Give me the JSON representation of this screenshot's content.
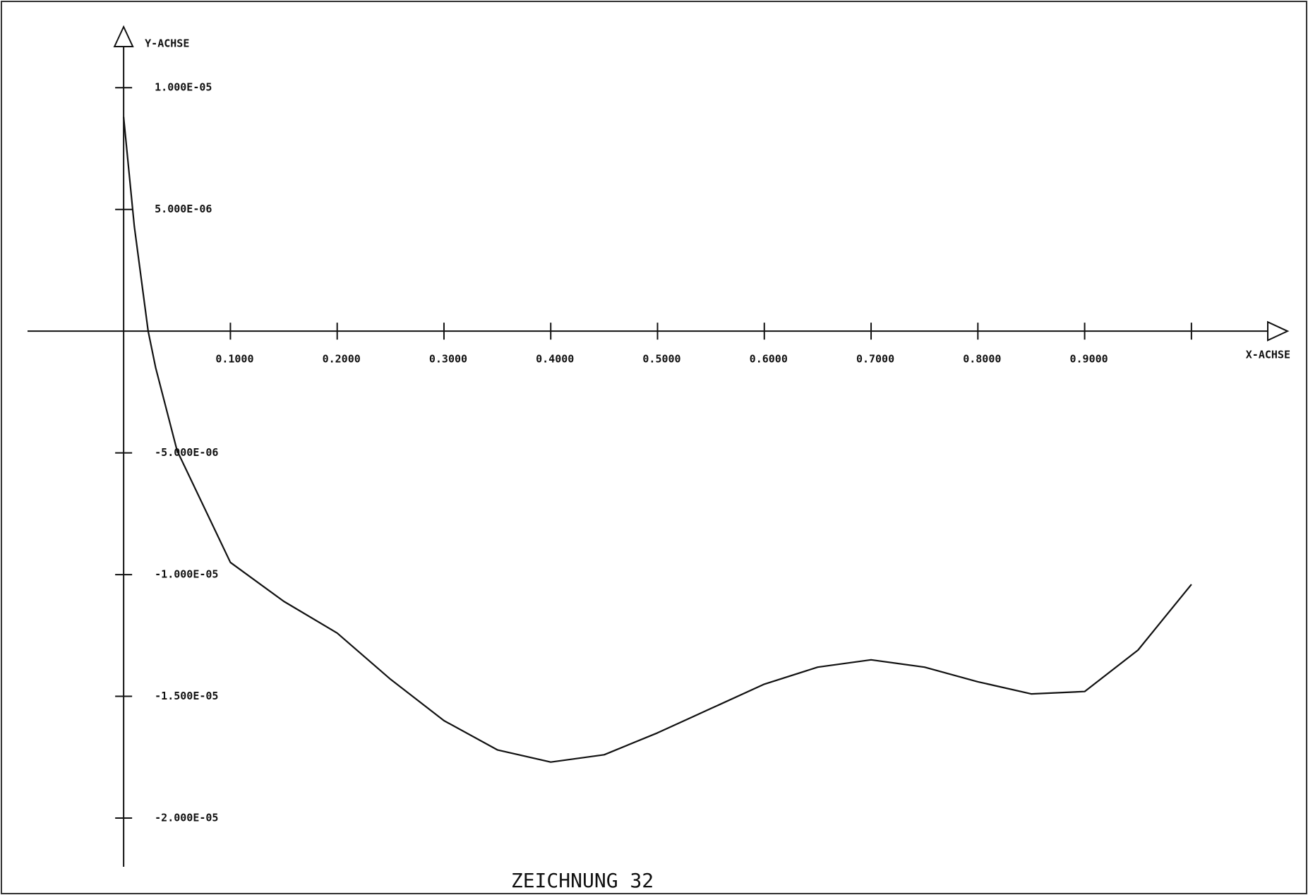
{
  "chart_data": {
    "type": "line",
    "title": "ZEICHNUNG 32",
    "x_label": "X-ACHSE",
    "y_label": "Y-ACHSE",
    "x": [
      0,
      0.01,
      0.023,
      0.03,
      0.05,
      0.1,
      0.15,
      0.2,
      0.25,
      0.3,
      0.35,
      0.4,
      0.45,
      0.5,
      0.55,
      0.6,
      0.65,
      0.7,
      0.75,
      0.8,
      0.85,
      0.9,
      0.95,
      1.0
    ],
    "series": [
      {
        "color": "#111111",
        "values": [
          8.8e-06,
          4.3e-06,
          0,
          -1.5e-06,
          -4.9e-06,
          -9.5e-06,
          -1.11e-05,
          -1.24e-05,
          -1.43e-05,
          -1.6e-05,
          -1.72e-05,
          -1.77e-05,
          -1.74e-05,
          -1.65e-05,
          -1.55e-05,
          -1.45e-05,
          -1.38e-05,
          -1.35e-05,
          -1.38e-05,
          -1.44e-05,
          -1.49e-05,
          -1.48e-05,
          -1.31e-05,
          -1.04e-05
        ]
      }
    ],
    "xlim": [
      -0.09,
      1.09
    ],
    "ylim": [
      -2.2e-05,
      1.25e-05
    ],
    "xticks": [
      {
        "value": 0.1,
        "label": "0.1000"
      },
      {
        "value": 0.2,
        "label": "0.2000"
      },
      {
        "value": 0.3,
        "label": "0.3000"
      },
      {
        "value": 0.4,
        "label": "0.4000"
      },
      {
        "value": 0.5,
        "label": "0.5000"
      },
      {
        "value": 0.6,
        "label": "0.6000"
      },
      {
        "value": 0.7,
        "label": "0.7000"
      },
      {
        "value": 0.8,
        "label": "0.8000"
      },
      {
        "value": 0.9,
        "label": "0.9000"
      },
      1.0
    ],
    "yticks": [
      {
        "value": 1e-05,
        "label": "1.000E-05"
      },
      {
        "value": 5e-06,
        "label": "5.000E-06"
      },
      {
        "value": -5e-06,
        "label": "-5.000E-06"
      },
      {
        "value": -1e-05,
        "label": "-1.000E-05"
      },
      {
        "value": -1.5e-05,
        "label": "-1.500E-05"
      },
      {
        "value": -2e-05,
        "label": "-2.000E-05"
      }
    ],
    "grid": false
  }
}
